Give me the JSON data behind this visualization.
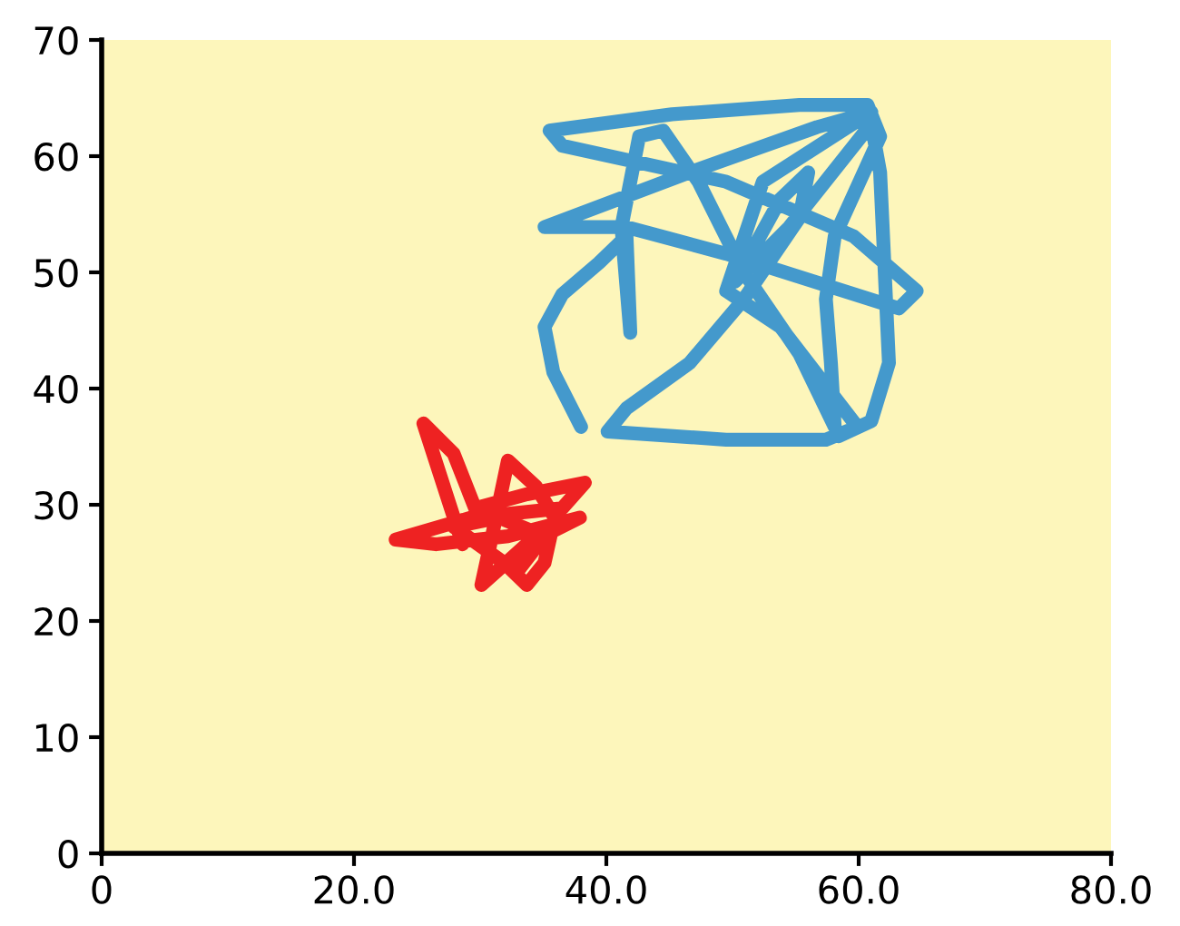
{
  "chart_data": {
    "type": "line",
    "xlim": [
      0,
      80
    ],
    "ylim": [
      0,
      70
    ],
    "xticks": [
      0,
      {
        "value": 20,
        "label": "20.0"
      },
      {
        "value": 40,
        "label": "40.0"
      },
      {
        "value": 60,
        "label": "60.0"
      },
      {
        "value": 80,
        "label": "80.0"
      }
    ],
    "yticks": [
      0,
      10,
      20,
      30,
      40,
      50,
      60,
      70
    ],
    "grid": false,
    "marker": "none",
    "line_style": "solid",
    "series": [
      {
        "color": "#4499cc",
        "x": [
          38.0,
          35.8,
          35.1,
          36.5,
          39.4,
          41.6,
          41.9,
          41.2,
          42.6,
          44.5,
          47.3,
          50.9,
          55.3,
          58.1,
          57.8,
          57.4,
          58.1,
          61.7,
          60.7,
          55.3,
          45.2,
          35.5,
          36.5,
          49.5,
          59.6,
          64.6,
          63.2,
          49.5,
          41.6,
          35.1,
          46.6,
          56.7,
          61.0,
          52.4,
          49.5,
          53.8,
          59.9,
          57.4,
          49.5,
          40.1,
          41.6,
          46.6,
          50.9,
          55.3,
          56.0,
          53.8,
          50.2,
          54.5,
          61.0,
          61.7,
          62.4,
          61.0,
          58.4
        ],
        "values": [
          36.7,
          41.4,
          45.3,
          48.1,
          50.8,
          53.1,
          44.8,
          53.9,
          61.7,
          62.2,
          57.8,
          50.0,
          43.0,
          36.7,
          42.2,
          47.7,
          53.1,
          61.7,
          64.4,
          64.4,
          63.6,
          62.2,
          60.9,
          57.8,
          53.1,
          48.4,
          46.9,
          51.6,
          53.9,
          53.9,
          58.6,
          62.5,
          63.8,
          57.8,
          48.4,
          45.3,
          36.7,
          35.6,
          35.6,
          36.3,
          38.3,
          42.2,
          47.7,
          54.7,
          58.6,
          56.3,
          49.2,
          53.9,
          62.8,
          58.6,
          42.2,
          37.2,
          35.9
        ]
      },
      {
        "color": "#ee2222",
        "x": [
          28.6,
          25.5,
          27.9,
          29.6,
          33.7,
          38.3,
          36.5,
          29.3,
          23.3,
          26.5,
          32.2,
          37.9,
          33.7,
          30.1,
          30.8,
          32.2,
          34.4,
          35.9,
          35.1,
          33.7,
          31.9,
          27.9,
          31.5,
          35.1,
          32.9
        ],
        "values": [
          26.6,
          37.0,
          34.4,
          29.7,
          30.9,
          31.9,
          29.7,
          28.9,
          27.0,
          26.6,
          27.3,
          28.9,
          26.6,
          23.1,
          26.6,
          33.8,
          31.6,
          28.9,
          25.0,
          23.1,
          25.0,
          28.1,
          28.9,
          27.3,
          24.2
        ]
      }
    ]
  }
}
